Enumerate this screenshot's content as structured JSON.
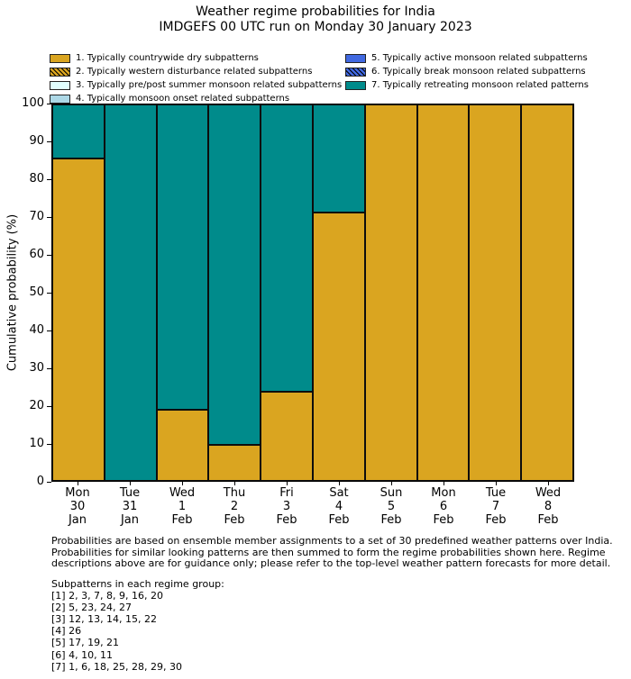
{
  "title": "Weather regime probabilities for India",
  "subtitle": "IMDGEFS 00 UTC run on Monday 30 January 2023",
  "legend": {
    "items": [
      {
        "label": "1. Typically countrywide dry subpatterns",
        "color": "#DAA520",
        "hatch": false
      },
      {
        "label": "2. Typically western disturbance related subpatterns",
        "color": "#DAA520",
        "hatch": true
      },
      {
        "label": "3. Typically pre/post summer monsoon related subpatterns",
        "color": "#E0FFFF",
        "hatch": false
      },
      {
        "label": "4. Typically monsoon onset related subpatterns",
        "color": "#ADD8E6",
        "hatch": false
      },
      {
        "label": "5. Typically active monsoon related subpatterns",
        "color": "#4169E1",
        "hatch": false
      },
      {
        "label": "6. Typically break monsoon related subpatterns",
        "color": "#4169E1",
        "hatch": true
      },
      {
        "label": "7. Typically retreating monsoon related patterns",
        "color": "#008B8B",
        "hatch": false
      }
    ]
  },
  "chart_data": {
    "type": "bar",
    "stacked": true,
    "title": "Weather regime probabilities for India",
    "subtitle": "IMDGEFS 00 UTC run on Monday 30 January 2023",
    "categories": [
      [
        "Mon",
        "30",
        "Jan"
      ],
      [
        "Tue",
        "31",
        "Jan"
      ],
      [
        "Wed",
        "1",
        "Feb"
      ],
      [
        "Thu",
        "2",
        "Feb"
      ],
      [
        "Fri",
        "3",
        "Feb"
      ],
      [
        "Sat",
        "4",
        "Feb"
      ],
      [
        "Sun",
        "5",
        "Feb"
      ],
      [
        "Mon",
        "6",
        "Feb"
      ],
      [
        "Tue",
        "7",
        "Feb"
      ],
      [
        "Wed",
        "8",
        "Feb"
      ]
    ],
    "series": [
      {
        "name": "1. Typically countrywide dry subpatterns",
        "color": "#DAA520",
        "values": [
          85.7,
          0,
          19.0,
          9.5,
          23.8,
          71.4,
          100,
          100,
          100,
          100
        ]
      },
      {
        "name": "7. Typically retreating monsoon related patterns",
        "color": "#008B8B",
        "values": [
          14.3,
          100,
          81.0,
          90.5,
          76.2,
          28.6,
          0,
          0,
          0,
          0
        ]
      }
    ],
    "xlabel": "",
    "ylabel": "Cumulative probability (%)",
    "ylim": [
      0,
      100
    ],
    "yticks": [
      0,
      10,
      20,
      30,
      40,
      50,
      60,
      70,
      80,
      90,
      100
    ],
    "grid": false,
    "legend_position": "top",
    "bar_edge_color": "#000000"
  },
  "footer": {
    "lines": [
      "Probabilities are based on ensemble member assignments to a set of 30 predefined weather patterns over India.",
      "Probabilities for similar looking patterns are then summed to form the regime probabilities shown here. Regime",
      "descriptions above are for guidance only; please refer to the top-level weather pattern forecasts for more detail."
    ]
  },
  "subpatterns": {
    "heading": "Subpatterns in each regime group:",
    "lines": [
      "[1] 2, 3, 7, 8, 9, 16, 20",
      "[2] 5, 23, 24, 27",
      "[3] 12, 13, 14, 15, 22",
      "[4] 26",
      "[5] 17, 19, 21",
      "[6] 4, 10, 11",
      "[7] 1, 6, 18, 25, 28, 29, 30"
    ]
  }
}
